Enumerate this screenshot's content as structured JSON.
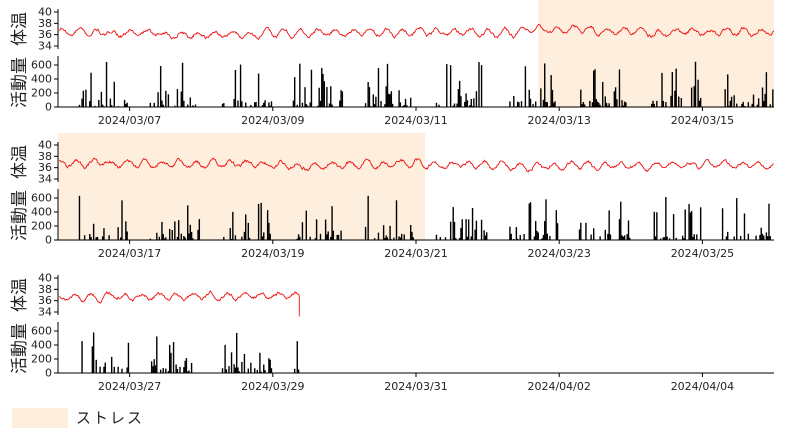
{
  "chart_data": {
    "type": "line",
    "ylabel_temp": "体温",
    "ylabel_activity": "活動量",
    "temp_ticks": [
      "40",
      "38",
      "36",
      "34"
    ],
    "temp_ylim": [
      33,
      41
    ],
    "activity_ticks": [
      "600",
      "400",
      "200",
      "0"
    ],
    "activity_ylim": [
      0,
      700
    ],
    "colors": {
      "temp": "#ee1111",
      "activity": "#000000",
      "stress": "#fdeedd"
    },
    "legend": {
      "label": "ストレス",
      "position": "bottom-left"
    },
    "rows": [
      {
        "x_start": "2024/03/06",
        "x_end": "2024/03/16",
        "x_ticks": [
          "2024/03/07",
          "2024/03/09",
          "2024/03/11",
          "2024/03/13",
          "2024/03/15"
        ],
        "data_end": "2024/03/16",
        "stress": [
          [
            "2024/03/12 17:00",
            "2024/03/16"
          ]
        ]
      },
      {
        "x_start": "2024/03/16",
        "x_end": "2024/03/26",
        "x_ticks": [
          "2024/03/17",
          "2024/03/19",
          "2024/03/21",
          "2024/03/23",
          "2024/03/25"
        ],
        "data_end": "2024/03/26",
        "stress": [
          [
            "2024/03/16",
            "2024/03/21 03:00"
          ]
        ]
      },
      {
        "x_start": "2024/03/26",
        "x_end": "2024/04/05",
        "x_ticks": [
          "2024/03/27",
          "2024/03/29",
          "2024/03/31",
          "2024/04/02",
          "2024/04/04"
        ],
        "data_end": "2024/03/29 09:00",
        "stress": []
      }
    ],
    "temperature_daily_mean": {
      "dates": [
        "2024/03/06",
        "2024/03/07",
        "2024/03/08",
        "2024/03/09",
        "2024/03/10",
        "2024/03/11",
        "2024/03/12",
        "2024/03/13",
        "2024/03/14",
        "2024/03/15",
        "2024/03/16",
        "2024/03/17",
        "2024/03/18",
        "2024/03/19",
        "2024/03/20",
        "2024/03/21",
        "2024/03/22",
        "2024/03/23",
        "2024/03/24",
        "2024/03/25",
        "2024/03/26",
        "2024/03/27",
        "2024/03/28",
        "2024/03/29"
      ],
      "values": [
        36.4,
        36.2,
        36.0,
        36.2,
        36.4,
        36.5,
        36.3,
        36.8,
        36.6,
        36.4,
        36.7,
        36.6,
        36.7,
        36.5,
        36.5,
        36.7,
        36.3,
        36.2,
        36.3,
        36.5,
        36.5,
        36.6,
        36.7,
        36.8
      ]
    }
  }
}
